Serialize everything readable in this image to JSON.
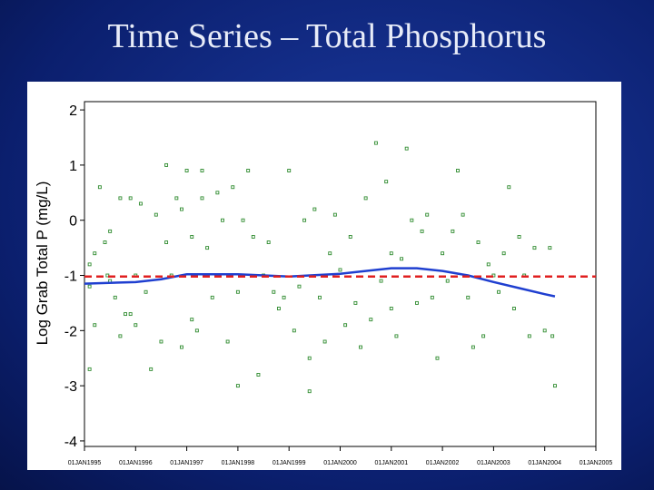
{
  "chart_data": {
    "type": "scatter",
    "title": "Time Series – Total Phosphorus",
    "ylabel": "Log Grab Total P (mg/L)",
    "xlim": [
      1995,
      2005
    ],
    "ylim": [
      -4.1,
      2.15
    ],
    "yticks": [
      -4,
      -3,
      -2,
      -1,
      0,
      1,
      2
    ],
    "xticks": [
      {
        "value": 1995,
        "label": "01JAN1995"
      },
      {
        "value": 1996,
        "label": "01JAN1996"
      },
      {
        "value": 1997,
        "label": "01JAN1997"
      },
      {
        "value": 1998,
        "label": "01JAN1998"
      },
      {
        "value": 1999,
        "label": "01JAN1999"
      },
      {
        "value": 2000,
        "label": "01JAN2000"
      },
      {
        "value": 2001,
        "label": "01JAN2001"
      },
      {
        "value": 2002,
        "label": "01JAN2002"
      },
      {
        "value": 2003,
        "label": "01JAN2003"
      },
      {
        "value": 2004,
        "label": "01JAN2004"
      },
      {
        "value": 2005,
        "label": "01JAN2005"
      }
    ],
    "series": [
      {
        "type": "scatter",
        "color": "#2e8b2e",
        "x": [
          1995.1,
          1995.1,
          1995.1,
          1995.2,
          1995.2,
          1995.3,
          1995.4,
          1995.45,
          1995.5,
          1995.5,
          1995.6,
          1995.7,
          1995.7,
          1995.8,
          1995.9,
          1995.9,
          1996.0,
          1996.0,
          1996.1,
          1996.2,
          1996.3,
          1996.4,
          1996.5,
          1996.6,
          1996.6,
          1996.7,
          1996.8,
          1996.9,
          1996.9,
          1997.0,
          1997.1,
          1997.1,
          1997.2,
          1997.3,
          1997.3,
          1997.4,
          1997.5,
          1997.6,
          1997.7,
          1997.8,
          1997.9,
          1998.0,
          1998.0,
          1998.1,
          1998.2,
          1998.3,
          1998.4,
          1998.5,
          1998.6,
          1998.7,
          1998.8,
          1998.9,
          1999.0,
          1999.1,
          1999.2,
          1999.3,
          1999.4,
          1999.4,
          1999.5,
          1999.6,
          1999.7,
          1999.8,
          1999.9,
          2000.0,
          2000.1,
          2000.2,
          2000.3,
          2000.4,
          2000.5,
          2000.6,
          2000.7,
          2000.8,
          2000.9,
          2001.0,
          2001.0,
          2001.1,
          2001.2,
          2001.3,
          2001.4,
          2001.5,
          2001.6,
          2001.7,
          2001.8,
          2001.9,
          2002.0,
          2002.1,
          2002.2,
          2002.3,
          2002.4,
          2002.5,
          2002.6,
          2002.7,
          2002.8,
          2002.9,
          2003.0,
          2003.1,
          2003.2,
          2003.3,
          2003.4,
          2003.5,
          2003.6,
          2003.7,
          2003.8,
          2004.0,
          2004.1,
          2004.15,
          2004.2
        ],
        "values": [
          -1.2,
          -0.8,
          -2.7,
          -1.9,
          -0.6,
          0.6,
          -0.4,
          -1.0,
          -1.1,
          -0.2,
          -1.4,
          -2.1,
          0.4,
          -1.7,
          -1.7,
          0.4,
          -1.9,
          -1.0,
          0.3,
          -1.3,
          -2.7,
          0.1,
          -2.2,
          -0.4,
          1.0,
          -1.0,
          0.4,
          -2.3,
          0.2,
          0.9,
          -0.3,
          -1.8,
          -2.0,
          0.4,
          0.9,
          -0.5,
          -1.4,
          0.5,
          0.0,
          -2.2,
          0.6,
          -1.3,
          -3.0,
          0.0,
          0.9,
          -0.3,
          -2.8,
          -1.0,
          -0.4,
          -1.3,
          -1.6,
          -1.4,
          0.9,
          -2.0,
          -1.2,
          0.0,
          -2.5,
          -3.1,
          0.2,
          -1.4,
          -2.2,
          -0.6,
          0.1,
          -0.9,
          -1.9,
          -0.3,
          -1.5,
          -2.3,
          0.4,
          -1.8,
          1.4,
          -1.1,
          0.7,
          -0.6,
          -1.6,
          -2.1,
          -0.7,
          1.3,
          0.0,
          -1.5,
          -0.2,
          0.1,
          -1.4,
          -2.5,
          -0.6,
          -1.1,
          -0.2,
          0.9,
          0.1,
          -1.4,
          -2.3,
          -0.4,
          -2.1,
          -0.8,
          -1.0,
          -1.3,
          -0.6,
          0.6,
          -1.6,
          -0.3,
          -1.0,
          -2.1,
          -0.5,
          -2.0,
          -0.5,
          -2.1,
          -3.0
        ]
      },
      {
        "type": "line",
        "color": "#1f3fd0",
        "x": [
          1995.0,
          1996.0,
          1996.5,
          1997.0,
          1998.0,
          1999.0,
          2000.0,
          2000.5,
          2001.0,
          2001.5,
          2002.0,
          2002.5,
          2003.0,
          2003.5,
          2004.0,
          2004.2
        ],
        "values": [
          -1.15,
          -1.12,
          -1.07,
          -0.98,
          -0.98,
          -1.02,
          -0.97,
          -0.92,
          -0.87,
          -0.87,
          -0.92,
          -1.0,
          -1.12,
          -1.23,
          -1.34,
          -1.38
        ]
      },
      {
        "type": "line",
        "color": "#e02020",
        "dashed": true,
        "x": [
          1995.0,
          2005.0
        ],
        "values": [
          -1.02,
          -1.02
        ]
      }
    ]
  }
}
